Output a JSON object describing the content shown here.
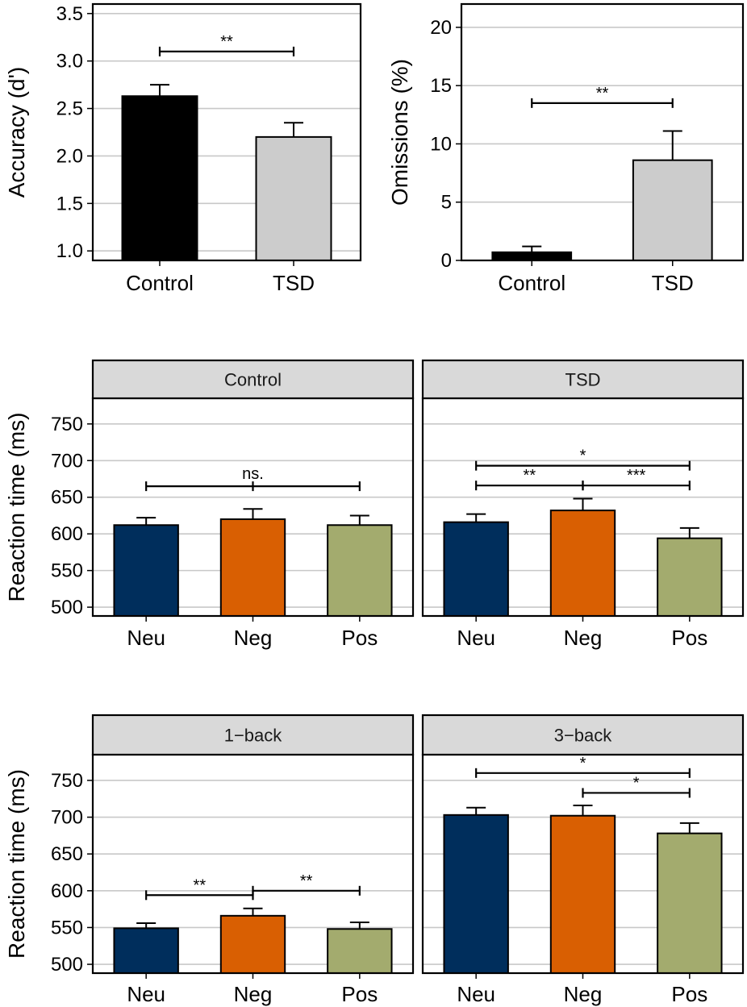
{
  "colors": {
    "control": "#000000",
    "tsd": "#cccccc",
    "neu": "#002e5c",
    "neg": "#d95f02",
    "pos": "#a3ab6e",
    "grid": "#c8c8c8",
    "strip": "#d9d9d9"
  },
  "chart_data": [
    {
      "id": "accuracy",
      "type": "bar",
      "ylabel": "Accuracy (d')",
      "ylim": [
        0.9,
        3.6
      ],
      "yticks": [
        1.0,
        1.5,
        2.0,
        2.5,
        3.0,
        3.5
      ],
      "ytick_labels": [
        "1.0",
        "1.5",
        "2.0",
        "2.5",
        "3.0",
        "3.5"
      ],
      "grid": true,
      "categories": [
        "Control",
        "TSD"
      ],
      "values": [
        2.63,
        2.2
      ],
      "errors": [
        0.12,
        0.15
      ],
      "colors": [
        "control",
        "tsd"
      ],
      "significance": [
        {
          "from": 0,
          "to": 1,
          "y": 3.1,
          "label": "**"
        }
      ]
    },
    {
      "id": "omissions",
      "type": "bar",
      "ylabel": "Omissions (%)",
      "ylim": [
        0,
        22
      ],
      "yticks": [
        0,
        5,
        10,
        15,
        20
      ],
      "ytick_labels": [
        "0",
        "5",
        "10",
        "15",
        "20"
      ],
      "grid": true,
      "categories": [
        "Control",
        "TSD"
      ],
      "values": [
        0.7,
        8.6
      ],
      "errors": [
        0.5,
        2.5
      ],
      "colors": [
        "control",
        "tsd"
      ],
      "significance": [
        {
          "from": 0,
          "to": 1,
          "y": 13.5,
          "label": "**"
        }
      ]
    },
    {
      "id": "rt-group",
      "type": "bar",
      "facet": true,
      "ylabel": "Reaction time (ms)",
      "ylim": [
        488,
        785
      ],
      "yticks": [
        500,
        550,
        600,
        650,
        700,
        750
      ],
      "ytick_labels": [
        "500",
        "550",
        "600",
        "650",
        "700",
        "750"
      ],
      "grid": true,
      "categories": [
        "Neu",
        "Neg",
        "Pos"
      ],
      "panels": [
        {
          "strip": "Control",
          "values": [
            612,
            620,
            612
          ],
          "errors": [
            10,
            14,
            13
          ],
          "significance": [
            {
              "from": 0,
              "to": 2,
              "y": 665,
              "label": "ns.",
              "mid_tick": true
            }
          ]
        },
        {
          "strip": "TSD",
          "values": [
            616,
            632,
            594
          ],
          "errors": [
            11,
            16,
            14
          ],
          "significance": [
            {
              "from": 0,
              "to": 2,
              "y": 693,
              "label": "*"
            },
            {
              "from": 0,
              "to": 1,
              "y": 666,
              "label": "**"
            },
            {
              "from": 1,
              "to": 2,
              "y": 666,
              "label": "***"
            }
          ]
        }
      ]
    },
    {
      "id": "rt-load",
      "type": "bar",
      "facet": true,
      "ylabel": "Reaction time (ms)",
      "ylim": [
        488,
        785
      ],
      "yticks": [
        500,
        550,
        600,
        650,
        700,
        750
      ],
      "ytick_labels": [
        "500",
        "550",
        "600",
        "650",
        "700",
        "750"
      ],
      "grid": true,
      "categories": [
        "Neu",
        "Neg",
        "Pos"
      ],
      "panels": [
        {
          "strip": "1−back",
          "values": [
            549,
            566,
            548
          ],
          "errors": [
            7,
            10,
            9
          ],
          "significance": [
            {
              "from": 0,
              "to": 1,
              "y": 594,
              "label": "**"
            },
            {
              "from": 1,
              "to": 2,
              "y": 600,
              "label": "**"
            }
          ]
        },
        {
          "strip": "3−back",
          "values": [
            703,
            702,
            678
          ],
          "errors": [
            10,
            14,
            14
          ],
          "significance": [
            {
              "from": 0,
              "to": 2,
              "y": 760,
              "label": "*"
            },
            {
              "from": 1,
              "to": 2,
              "y": 733,
              "label": "*"
            }
          ]
        }
      ]
    }
  ]
}
